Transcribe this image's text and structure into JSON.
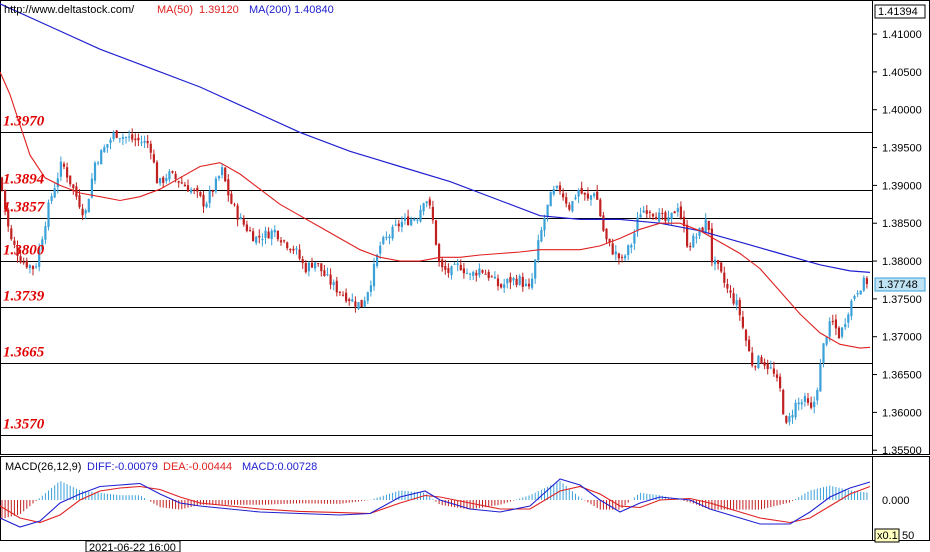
{
  "header": {
    "url": "http://www.deltastock.com/",
    "ma50_label": "MA(50)",
    "ma50_value": "1.39120",
    "ma200_label": "MA(200)",
    "ma200_value": "1.40840",
    "top_price": "1.41394",
    "current_price": "1.37748",
    "timestamp": "2021-06-22 16:00",
    "zoom": "x0.1"
  },
  "macd": {
    "title": "MACD(26,12,9)",
    "diff": "DIFF:-0.00079",
    "dea": "DEA:-0.00444",
    "value": "MACD:0.00728",
    "zero_label": "0.000",
    "bottom_label": "50"
  },
  "colors": {
    "ma50": "#e02020",
    "ma200": "#2020d0",
    "up": "#3aa0d8",
    "down": "#c02020",
    "level": "#000000",
    "level_label": "#e00000"
  },
  "chart_data": {
    "type": "candlestick",
    "ylim": [
      1.3545,
      1.4145
    ],
    "yticks": [
      "1.41000",
      "1.40500",
      "1.40000",
      "1.39500",
      "1.39000",
      "1.38500",
      "1.38000",
      "1.37500",
      "1.37000",
      "1.36500",
      "1.36000",
      "1.35500"
    ],
    "ytick_values": [
      1.41,
      1.405,
      1.4,
      1.395,
      1.39,
      1.385,
      1.38,
      1.375,
      1.37,
      1.365,
      1.36,
      1.355
    ],
    "levels": [
      {
        "label": "1.3970",
        "value": 1.397
      },
      {
        "label": "1.3894",
        "value": 1.3894
      },
      {
        "label": "1.3857",
        "value": 1.3857
      },
      {
        "label": "1.3800",
        "value": 1.38
      },
      {
        "label": "1.3739",
        "value": 1.3739
      },
      {
        "label": "1.3665",
        "value": 1.3665
      },
      {
        "label": "1.3570",
        "value": 1.357
      }
    ],
    "close_path": [
      [
        0,
        1.391
      ],
      [
        10,
        1.383
      ],
      [
        22,
        1.38
      ],
      [
        35,
        1.379
      ],
      [
        50,
        1.388
      ],
      [
        62,
        1.393
      ],
      [
        75,
        1.389
      ],
      [
        85,
        1.386
      ],
      [
        95,
        1.393
      ],
      [
        105,
        1.395
      ],
      [
        115,
        1.397
      ],
      [
        122,
        1.3965
      ],
      [
        135,
        1.396
      ],
      [
        150,
        1.3955
      ],
      [
        158,
        1.39
      ],
      [
        168,
        1.3915
      ],
      [
        180,
        1.3905
      ],
      [
        195,
        1.389
      ],
      [
        205,
        1.3875
      ],
      [
        215,
        1.39
      ],
      [
        222,
        1.392
      ],
      [
        230,
        1.388
      ],
      [
        240,
        1.3855
      ],
      [
        255,
        1.383
      ],
      [
        265,
        1.3835
      ],
      [
        275,
        1.384
      ],
      [
        285,
        1.3825
      ],
      [
        295,
        1.3815
      ],
      [
        305,
        1.379
      ],
      [
        315,
        1.38
      ],
      [
        325,
        1.378
      ],
      [
        335,
        1.3765
      ],
      [
        345,
        1.3755
      ],
      [
        355,
        1.3745
      ],
      [
        362,
        1.3742
      ],
      [
        370,
        1.377
      ],
      [
        380,
        1.382
      ],
      [
        390,
        1.3835
      ],
      [
        400,
        1.385
      ],
      [
        410,
        1.3855
      ],
      [
        418,
        1.386
      ],
      [
        425,
        1.3888
      ],
      [
        432,
        1.386
      ],
      [
        440,
        1.379
      ],
      [
        450,
        1.3785
      ],
      [
        460,
        1.3795
      ],
      [
        470,
        1.378
      ],
      [
        480,
        1.379
      ],
      [
        490,
        1.378
      ],
      [
        500,
        1.3765
      ],
      [
        510,
        1.3775
      ],
      [
        520,
        1.3775
      ],
      [
        530,
        1.376
      ],
      [
        538,
        1.382
      ],
      [
        545,
        1.386
      ],
      [
        552,
        1.389
      ],
      [
        560,
        1.3895
      ],
      [
        570,
        1.387
      ],
      [
        578,
        1.3895
      ],
      [
        588,
        1.388
      ],
      [
        595,
        1.3895
      ],
      [
        605,
        1.383
      ],
      [
        612,
        1.3815
      ],
      [
        622,
        1.38
      ],
      [
        632,
        1.3825
      ],
      [
        640,
        1.3865
      ],
      [
        648,
        1.387
      ],
      [
        658,
        1.386
      ],
      [
        668,
        1.385
      ],
      [
        678,
        1.3875
      ],
      [
        688,
        1.382
      ],
      [
        698,
        1.3835
      ],
      [
        708,
        1.3855
      ],
      [
        712,
        1.38
      ],
      [
        718,
        1.379
      ],
      [
        728,
        1.376
      ],
      [
        738,
        1.374
      ],
      [
        745,
        1.37
      ],
      [
        752,
        1.3665
      ],
      [
        762,
        1.367
      ],
      [
        772,
        1.3655
      ],
      [
        780,
        1.363
      ],
      [
        786,
        1.358
      ],
      [
        795,
        1.361
      ],
      [
        805,
        1.3615
      ],
      [
        812,
        1.36
      ],
      [
        818,
        1.364
      ],
      [
        825,
        1.37
      ],
      [
        832,
        1.372
      ],
      [
        840,
        1.37
      ],
      [
        848,
        1.3735
      ],
      [
        855,
        1.3758
      ],
      [
        862,
        1.377
      ],
      [
        870,
        1.3775
      ]
    ],
    "ma50": [
      [
        0,
        1.405
      ],
      [
        10,
        1.402
      ],
      [
        20,
        1.398
      ],
      [
        30,
        1.394
      ],
      [
        45,
        1.391
      ],
      [
        60,
        1.39
      ],
      [
        80,
        1.389
      ],
      [
        100,
        1.3885
      ],
      [
        120,
        1.388
      ],
      [
        140,
        1.3885
      ],
      [
        160,
        1.3895
      ],
      [
        180,
        1.391
      ],
      [
        200,
        1.3925
      ],
      [
        220,
        1.393
      ],
      [
        240,
        1.3915
      ],
      [
        260,
        1.3895
      ],
      [
        280,
        1.3875
      ],
      [
        300,
        1.386
      ],
      [
        320,
        1.3845
      ],
      [
        340,
        1.383
      ],
      [
        360,
        1.3815
      ],
      [
        380,
        1.3805
      ],
      [
        400,
        1.38
      ],
      [
        420,
        1.38
      ],
      [
        440,
        1.3805
      ],
      [
        460,
        1.3805
      ],
      [
        480,
        1.3808
      ],
      [
        500,
        1.381
      ],
      [
        520,
        1.3812
      ],
      [
        540,
        1.3815
      ],
      [
        560,
        1.3815
      ],
      [
        580,
        1.3815
      ],
      [
        600,
        1.382
      ],
      [
        620,
        1.383
      ],
      [
        640,
        1.3842
      ],
      [
        660,
        1.385
      ],
      [
        680,
        1.385
      ],
      [
        700,
        1.384
      ],
      [
        720,
        1.3825
      ],
      [
        740,
        1.381
      ],
      [
        760,
        1.379
      ],
      [
        780,
        1.376
      ],
      [
        800,
        1.373
      ],
      [
        820,
        1.3705
      ],
      [
        840,
        1.369
      ],
      [
        860,
        1.3685
      ],
      [
        870,
        1.3686
      ]
    ],
    "ma200": [
      [
        0,
        1.414
      ],
      [
        50,
        1.411
      ],
      [
        100,
        1.408
      ],
      [
        150,
        1.4055
      ],
      [
        200,
        1.403
      ],
      [
        250,
        1.4
      ],
      [
        300,
        1.397
      ],
      [
        350,
        1.3945
      ],
      [
        400,
        1.3925
      ],
      [
        450,
        1.3905
      ],
      [
        500,
        1.388
      ],
      [
        540,
        1.386
      ],
      [
        580,
        1.3855
      ],
      [
        620,
        1.3855
      ],
      [
        660,
        1.385
      ],
      [
        700,
        1.384
      ],
      [
        740,
        1.3825
      ],
      [
        780,
        1.381
      ],
      [
        820,
        1.3795
      ],
      [
        850,
        1.3787
      ],
      [
        870,
        1.3785
      ]
    ],
    "macd_diff": [
      [
        0,
        -0.6
      ],
      [
        20,
        -0.9
      ],
      [
        40,
        -0.7
      ],
      [
        60,
        -0.1
      ],
      [
        80,
        0.2
      ],
      [
        100,
        0.45
      ],
      [
        120,
        0.5
      ],
      [
        140,
        0.55
      ],
      [
        160,
        0.2
      ],
      [
        180,
        -0.1
      ],
      [
        200,
        -0.2
      ],
      [
        230,
        -0.3
      ],
      [
        260,
        -0.4
      ],
      [
        300,
        -0.45
      ],
      [
        340,
        -0.5
      ],
      [
        370,
        -0.45
      ],
      [
        400,
        0.1
      ],
      [
        425,
        0.3
      ],
      [
        440,
        0.0
      ],
      [
        470,
        -0.3
      ],
      [
        500,
        -0.4
      ],
      [
        530,
        -0.2
      ],
      [
        560,
        0.7
      ],
      [
        580,
        0.5
      ],
      [
        600,
        0.0
      ],
      [
        620,
        -0.4
      ],
      [
        640,
        -0.1
      ],
      [
        660,
        0.1
      ],
      [
        690,
        0.0
      ],
      [
        710,
        -0.3
      ],
      [
        740,
        -0.6
      ],
      [
        760,
        -0.8
      ],
      [
        790,
        -0.8
      ],
      [
        810,
        -0.4
      ],
      [
        830,
        0.1
      ],
      [
        850,
        0.4
      ],
      [
        870,
        0.6
      ]
    ],
    "macd_dea": [
      [
        0,
        -0.2
      ],
      [
        20,
        -0.6
      ],
      [
        40,
        -0.75
      ],
      [
        60,
        -0.5
      ],
      [
        80,
        0.0
      ],
      [
        100,
        0.3
      ],
      [
        120,
        0.4
      ],
      [
        140,
        0.45
      ],
      [
        160,
        0.35
      ],
      [
        180,
        0.1
      ],
      [
        200,
        -0.1
      ],
      [
        230,
        -0.2
      ],
      [
        260,
        -0.3
      ],
      [
        300,
        -0.38
      ],
      [
        340,
        -0.42
      ],
      [
        370,
        -0.45
      ],
      [
        400,
        -0.1
      ],
      [
        425,
        0.15
      ],
      [
        440,
        0.1
      ],
      [
        470,
        -0.1
      ],
      [
        500,
        -0.3
      ],
      [
        530,
        -0.3
      ],
      [
        560,
        0.3
      ],
      [
        580,
        0.45
      ],
      [
        600,
        0.2
      ],
      [
        620,
        -0.2
      ],
      [
        640,
        -0.25
      ],
      [
        660,
        0.0
      ],
      [
        690,
        0.05
      ],
      [
        710,
        -0.1
      ],
      [
        740,
        -0.4
      ],
      [
        760,
        -0.6
      ],
      [
        790,
        -0.75
      ],
      [
        810,
        -0.6
      ],
      [
        830,
        -0.2
      ],
      [
        850,
        0.2
      ],
      [
        870,
        0.45
      ]
    ]
  }
}
